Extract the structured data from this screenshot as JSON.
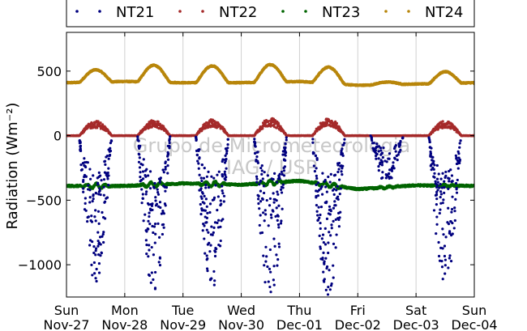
{
  "chart_data": {
    "type": "scatter",
    "title": "",
    "xlabel": "",
    "ylabel": "Radiation (Wm⁻²)",
    "ylim": [
      -1250,
      800
    ],
    "xlim": [
      0,
      7
    ],
    "grid": "vertical",
    "legend_placement": "top",
    "x_ticks": [
      {
        "x": 0,
        "day": "Sun",
        "date": "Nov-27"
      },
      {
        "x": 1,
        "day": "Mon",
        "date": "Nov-28"
      },
      {
        "x": 2,
        "day": "Tue",
        "date": "Nov-29"
      },
      {
        "x": 3,
        "day": "Wed",
        "date": "Nov-30"
      },
      {
        "x": 4,
        "day": "Thu",
        "date": "Dec-01"
      },
      {
        "x": 5,
        "day": "Fri",
        "date": "Dec-02"
      },
      {
        "x": 6,
        "day": "Sat",
        "date": "Dec-03"
      },
      {
        "x": 7,
        "day": "Sun",
        "date": "Dec-04"
      }
    ],
    "y_ticks": [
      500,
      0,
      -500,
      -1000
    ],
    "watermark": [
      "Grupo de Micrometeorologia",
      "IAG / USP"
    ],
    "series": [
      {
        "name": "NT21",
        "color": "#00007f",
        "night": 0,
        "noon_min": [
          -1080,
          -1150,
          -1130,
          -1230,
          -1200,
          -360,
          -1100
        ],
        "day_scale": [
          1,
          1,
          1,
          1,
          1,
          1,
          1
        ]
      },
      {
        "name": "NT22",
        "color": "#a52a2a",
        "night": 0,
        "noon_max": [
          110,
          115,
          120,
          130,
          130,
          0,
          110
        ]
      },
      {
        "name": "NT23",
        "color": "#006400",
        "base": [
          -390,
          -390,
          -370,
          -380,
          -350,
          -415,
          -385,
          -390
        ]
      },
      {
        "name": "NT24",
        "color": "#b8860b",
        "night": [
          410,
          420,
          410,
          410,
          420,
          390,
          400,
          410
        ],
        "noon_max": [
          505,
          550,
          540,
          545,
          545,
          410,
          490
        ]
      }
    ]
  }
}
